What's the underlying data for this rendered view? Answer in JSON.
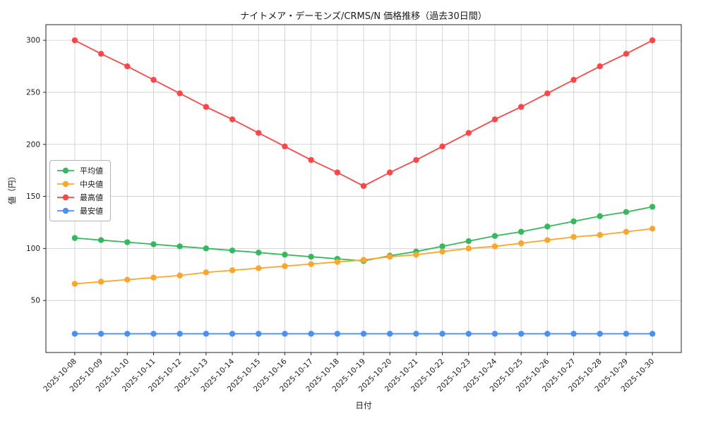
{
  "chart_data": {
    "type": "line",
    "title": "ナイトメア・デーモンズ/CRMS/N 価格推移（過去30日間）",
    "xlabel": "日付",
    "ylabel": "値（円）",
    "ylim": [
      0,
      315
    ],
    "yticks": [
      50,
      100,
      150,
      200,
      250,
      300
    ],
    "grid": true,
    "legend_position": "center-left",
    "background_color": "#ffffff",
    "grid_color": "#cccccc",
    "axis_color": "#262626",
    "categories": [
      "2025-10-08",
      "2025-10-09",
      "2025-10-10",
      "2025-10-11",
      "2025-10-12",
      "2025-10-13",
      "2025-10-14",
      "2025-10-15",
      "2025-10-16",
      "2025-10-17",
      "2025-10-18",
      "2025-10-19",
      "2025-10-20",
      "2025-10-21",
      "2025-10-22",
      "2025-10-23",
      "2025-10-24",
      "2025-10-25",
      "2025-10-26",
      "2025-10-27",
      "2025-10-28",
      "2025-10-29",
      "2025-10-30"
    ],
    "series": [
      {
        "key": "average",
        "name": "平均値",
        "color": "#34b95c",
        "values": [
          110,
          108,
          106,
          104,
          102,
          100,
          98,
          96,
          94,
          92,
          90,
          88,
          93,
          97,
          102,
          107,
          112,
          116,
          121,
          126,
          131,
          135,
          140
        ]
      },
      {
        "key": "median",
        "name": "中央値",
        "color": "#ffa629",
        "values": [
          66,
          68,
          70,
          72,
          74,
          77,
          79,
          81,
          83,
          85,
          87,
          89,
          92,
          94,
          97,
          100,
          102,
          105,
          108,
          111,
          113,
          116,
          119
        ]
      },
      {
        "key": "highest",
        "name": "最高値",
        "color": "#ff4545",
        "values": [
          300,
          287,
          275,
          262,
          249,
          236,
          224,
          211,
          198,
          185,
          173,
          160,
          173,
          185,
          198,
          211,
          224,
          236,
          249,
          262,
          275,
          287,
          300
        ]
      },
      {
        "key": "lowest",
        "name": "最安値",
        "color": "#4a90f2",
        "values": [
          18,
          18,
          18,
          18,
          18,
          18,
          18,
          18,
          18,
          18,
          18,
          18,
          18,
          18,
          18,
          18,
          18,
          18,
          18,
          18,
          18,
          18,
          18
        ]
      }
    ]
  }
}
